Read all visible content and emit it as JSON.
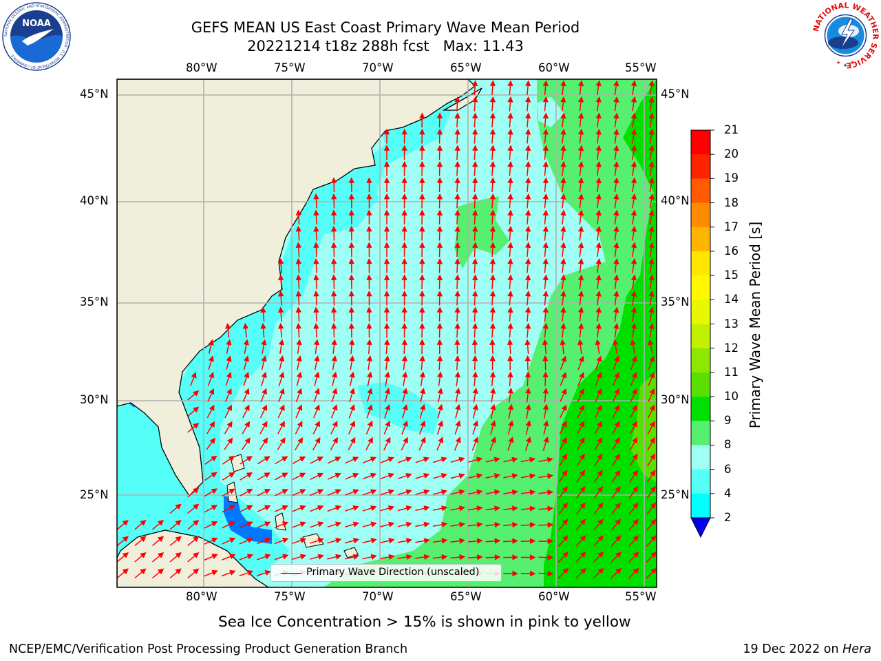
{
  "title_line1": "GEFS MEAN US East Coast Primary Wave Mean Period",
  "title_line2": "20221214 t18z 288h fcst   Max: 11.43",
  "subtitle": "Sea Ice Concentration > 15% is shown in pink to yellow",
  "footer_left": "NCEP/EMC/Verification Post Processing Product Generation Branch",
  "footer_right_text": "19 Dec 2022 on ",
  "footer_right_host": "Hera",
  "legend_label": "Primary Wave Direction (unscaled)",
  "colorbar": {
    "label": "Primary Wave Mean Period [s]",
    "ticks": [
      "21",
      "20",
      "19",
      "18",
      "17",
      "16",
      "15",
      "14",
      "13",
      "12",
      "11",
      "10",
      "9",
      "8",
      "6",
      "4",
      "2"
    ],
    "colors": [
      "#ff0000",
      "#ff2400",
      "#ff5a00",
      "#ff8c00",
      "#ffb400",
      "#ffe600",
      "#fff800",
      "#e8f800",
      "#c2f000",
      "#8ce800",
      "#5ae000",
      "#00e000",
      "#55f070",
      "#a0fff4",
      "#55fff8",
      "#00ffff",
      "#0078ff",
      "#0000ee"
    ]
  },
  "map": {
    "lon_labels": [
      "80°W",
      "75°W",
      "70°W",
      "65°W",
      "60°W",
      "55°W"
    ],
    "lat_labels": [
      "45°N",
      "40°N",
      "35°N",
      "30°N",
      "25°N"
    ],
    "lon_range": [
      -85,
      -54.3
    ],
    "lat_range": [
      20.5,
      46.3
    ],
    "land_color": "#efefdc",
    "arrow_color": "#ff0000"
  },
  "logos": {
    "noaa_text": "NOAA",
    "noaa_ring": "NATIONAL OCEANIC AND ATMOSPHERIC ADMINISTRATION · U.S. DEPARTMENT OF COMMERCE",
    "nws_ring": "NATIONAL WEATHER SERVICE"
  }
}
